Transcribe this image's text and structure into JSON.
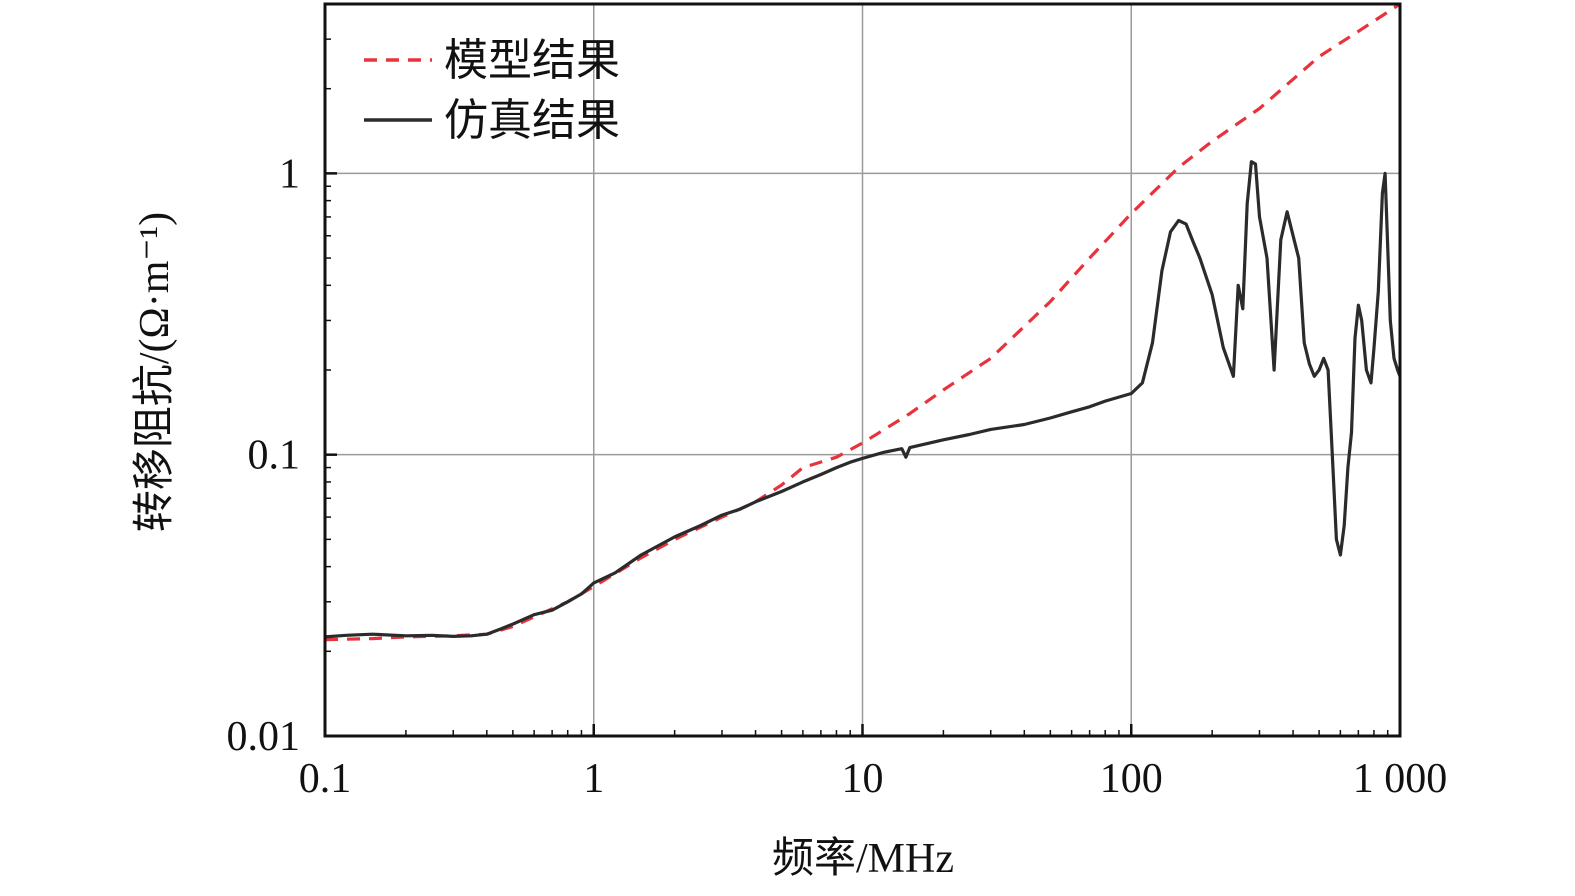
{
  "chart_data": {
    "type": "line",
    "xscale": "log",
    "yscale": "log",
    "xlabel": "频率/MHz",
    "ylabel": "转移阻抗/(Ω·m⁻¹)",
    "xlim": [
      0.1,
      1000
    ],
    "ylim": [
      0.01,
      4
    ],
    "xticks": [
      0.1,
      1,
      10,
      100,
      1000
    ],
    "xtick_labels": [
      "0.1",
      "1",
      "10",
      "100",
      "1 000"
    ],
    "yticks": [
      0.01,
      0.1,
      1
    ],
    "ytick_labels": [
      "0.01",
      "0.1",
      "1"
    ],
    "grid": true,
    "legend_position": "top-left",
    "series": [
      {
        "name": "模型结果",
        "color": "#e8323c",
        "style": "dashed",
        "x": [
          0.1,
          0.15,
          0.2,
          0.3,
          0.4,
          0.5,
          0.6,
          0.8,
          1,
          1.5,
          2,
          3,
          4,
          5,
          6,
          8,
          10,
          15,
          20,
          30,
          50,
          70,
          100,
          150,
          200,
          300,
          500,
          700,
          1000
        ],
        "y": [
          0.022,
          0.0222,
          0.0225,
          0.0227,
          0.023,
          0.0245,
          0.0265,
          0.03,
          0.034,
          0.043,
          0.05,
          0.06,
          0.068,
          0.078,
          0.09,
          0.098,
          0.11,
          0.14,
          0.17,
          0.22,
          0.35,
          0.5,
          0.72,
          1.05,
          1.3,
          1.7,
          2.6,
          3.2,
          4.0
        ]
      },
      {
        "name": "仿真结果",
        "color": "#2b2b2b",
        "style": "solid",
        "x": [
          0.1,
          0.12,
          0.15,
          0.2,
          0.25,
          0.3,
          0.35,
          0.4,
          0.45,
          0.5,
          0.6,
          0.7,
          0.8,
          0.9,
          1,
          1.2,
          1.5,
          2,
          2.5,
          3,
          3.5,
          4,
          5,
          6,
          7,
          8,
          9,
          10,
          12,
          14,
          14.5,
          15,
          20,
          25,
          30,
          40,
          50,
          60,
          70,
          80,
          100,
          110,
          120,
          130,
          140,
          150,
          160,
          170,
          180,
          200,
          220,
          240,
          250,
          260,
          270,
          280,
          290,
          300,
          320,
          340,
          360,
          380,
          400,
          420,
          440,
          460,
          480,
          500,
          520,
          540,
          560,
          580,
          600,
          620,
          640,
          660,
          680,
          700,
          720,
          750,
          780,
          800,
          830,
          860,
          880,
          900,
          920,
          950,
          980,
          1000
        ],
        "y": [
          0.0225,
          0.0228,
          0.023,
          0.0227,
          0.0228,
          0.0226,
          0.0227,
          0.023,
          0.024,
          0.025,
          0.027,
          0.028,
          0.03,
          0.032,
          0.035,
          0.038,
          0.044,
          0.051,
          0.056,
          0.061,
          0.064,
          0.068,
          0.074,
          0.08,
          0.085,
          0.09,
          0.094,
          0.097,
          0.102,
          0.105,
          0.098,
          0.106,
          0.113,
          0.118,
          0.123,
          0.128,
          0.135,
          0.142,
          0.148,
          0.155,
          0.165,
          0.18,
          0.25,
          0.45,
          0.62,
          0.68,
          0.66,
          0.57,
          0.5,
          0.37,
          0.24,
          0.19,
          0.4,
          0.33,
          0.78,
          1.1,
          1.08,
          0.7,
          0.5,
          0.2,
          0.58,
          0.73,
          0.6,
          0.5,
          0.25,
          0.21,
          0.19,
          0.2,
          0.22,
          0.2,
          0.1,
          0.05,
          0.044,
          0.056,
          0.09,
          0.12,
          0.26,
          0.34,
          0.3,
          0.2,
          0.18,
          0.24,
          0.38,
          0.85,
          1.0,
          0.55,
          0.3,
          0.22,
          0.2,
          0.19
        ]
      }
    ]
  }
}
